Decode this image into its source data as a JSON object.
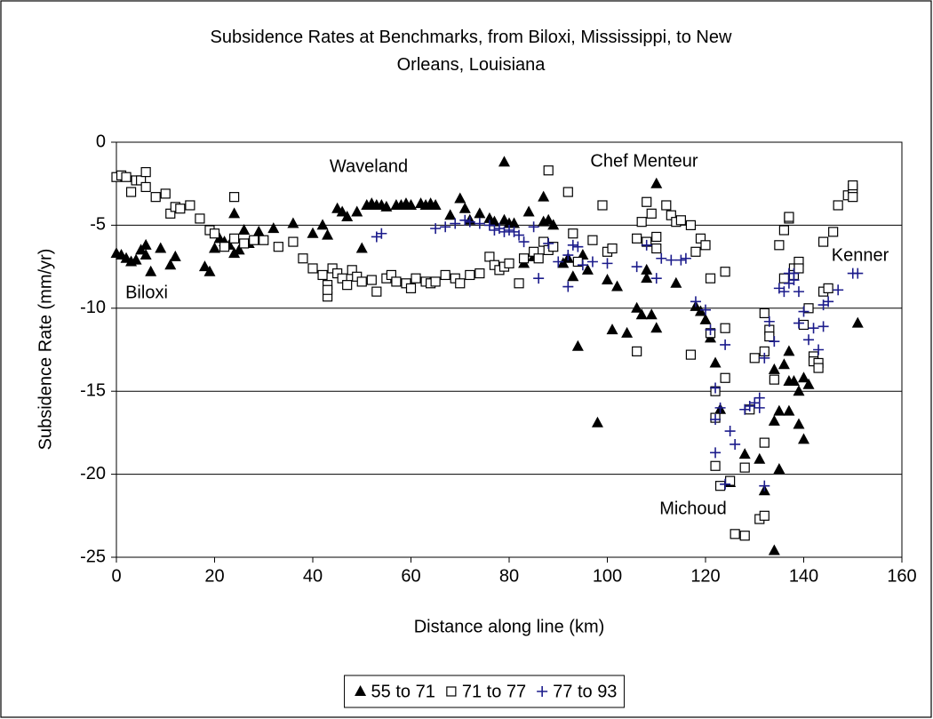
{
  "chart_data": {
    "type": "scatter",
    "title": "Subsidence Rates at Benchmarks, from Biloxi, Mississippi, to New Orleans, Louisiana",
    "xlabel": "Distance along line (km)",
    "ylabel": "Subsidence Rate (mm/yr)",
    "xlim": [
      0,
      160
    ],
    "xticks": [
      0,
      20,
      40,
      60,
      80,
      100,
      120,
      140,
      160
    ],
    "ylim": [
      -25,
      0
    ],
    "yticks": [
      -25,
      -20,
      -15,
      -10,
      -5,
      0
    ],
    "grid": true,
    "legend": "bottom",
    "annotations": [
      "Waveland",
      "Chef Menteur",
      "Biloxi",
      "Kenner",
      "Michoud"
    ],
    "series": [
      {
        "name": "55 to 71",
        "color": "#000000",
        "marker": "triangle",
        "x": [
          0,
          1,
          2,
          3,
          4,
          5,
          6,
          6,
          7,
          9,
          11,
          12,
          18,
          19,
          20,
          21,
          22,
          23,
          24,
          24,
          25,
          26,
          27,
          29,
          32,
          36,
          40,
          42,
          43,
          45,
          46,
          47,
          49,
          50,
          51,
          52,
          53,
          54,
          55,
          57,
          58,
          59,
          60,
          62,
          63,
          64,
          65,
          68,
          70,
          71,
          72,
          74,
          76,
          77,
          79,
          79,
          80,
          81,
          83,
          84,
          85,
          87,
          87,
          88,
          89,
          91,
          92,
          93,
          94,
          95,
          96,
          98,
          100,
          101,
          102,
          104,
          106,
          107,
          108,
          108,
          109,
          110,
          110,
          114,
          118,
          119,
          120,
          121,
          122,
          123,
          125,
          128,
          131,
          132,
          134,
          134,
          135,
          135,
          136,
          137,
          137,
          137,
          138,
          139,
          139,
          140,
          140,
          141,
          134,
          151
        ],
        "values": [
          -6.7,
          -6.8,
          -7,
          -7.2,
          -7.1,
          -6.5,
          -6.2,
          -6.8,
          -7.8,
          -6.4,
          -7.4,
          -6.9,
          -7.5,
          -7.8,
          -6.4,
          -5.8,
          -6,
          -6.2,
          -4.3,
          -6.7,
          -6.5,
          -5.3,
          -6.1,
          -5.4,
          -5.2,
          -4.9,
          -5.5,
          -5,
          -5.6,
          -4,
          -4.2,
          -4.5,
          -4.2,
          -6.4,
          -3.8,
          -3.7,
          -3.8,
          -3.8,
          -3.9,
          -3.8,
          -3.8,
          -3.7,
          -3.8,
          -3.7,
          -3.8,
          -3.7,
          -3.8,
          -4.4,
          -3.4,
          -4,
          -4.7,
          -4.3,
          -4.6,
          -4.8,
          -1.2,
          -4.7,
          -4.9,
          -4.9,
          -7.3,
          -4.2,
          -6.9,
          -3.3,
          -4.8,
          -4.7,
          -5,
          -7.3,
          -7,
          -8.1,
          -12.3,
          -6.8,
          -7.7,
          -16.9,
          -8.3,
          -11.3,
          -8.7,
          -11.5,
          -10,
          -10.4,
          -7.7,
          -8.2,
          -10.4,
          -2.5,
          -11.2,
          -8.5,
          -9.9,
          -10.2,
          -10.7,
          -11.8,
          -13.3,
          -16.1,
          -20.5,
          -18.8,
          -19.1,
          -21,
          -16.8,
          -13.7,
          -16.2,
          -19.7,
          -13.4,
          -16.2,
          -12.6,
          -14.4,
          -14.4,
          -17,
          -15,
          -14.2,
          -17.9,
          -14.6,
          -24.6,
          -10.9
        ]
      },
      {
        "name": "71 to 77",
        "color": "#000000",
        "marker": "square",
        "x": [
          0,
          1,
          2,
          3,
          4,
          5,
          6,
          6,
          8,
          10,
          11,
          12,
          13,
          15,
          17,
          19,
          20,
          22,
          24,
          24,
          26,
          28,
          30,
          33,
          36,
          38,
          40,
          42,
          43,
          43,
          43,
          44,
          45,
          46,
          47,
          48,
          49,
          50,
          52,
          53,
          55,
          56,
          57,
          59,
          60,
          61,
          63,
          64,
          65,
          67,
          69,
          70,
          72,
          74,
          76,
          77,
          78,
          79,
          80,
          82,
          83,
          85,
          86,
          87,
          88,
          88,
          89,
          92,
          93,
          94,
          97,
          99,
          100,
          101,
          106,
          106,
          107,
          108,
          108,
          109,
          110,
          110,
          112,
          113,
          114,
          115,
          117,
          117,
          118,
          119,
          120,
          121,
          121,
          122,
          122,
          122,
          123,
          124,
          124,
          124,
          125,
          126,
          128,
          128,
          129,
          130,
          131,
          132,
          132,
          132,
          132,
          133,
          133,
          134,
          135,
          136,
          136,
          137,
          137,
          138,
          138,
          139,
          139,
          140,
          141,
          142,
          142,
          143,
          143,
          144,
          144,
          145,
          146,
          147,
          149,
          150,
          150,
          150
        ],
        "values": [
          -2.1,
          -2,
          -2.1,
          -3,
          -2.3,
          -2.3,
          -1.8,
          -2.7,
          -3.3,
          -3.1,
          -4.3,
          -3.9,
          -4,
          -3.8,
          -4.6,
          -5.3,
          -5.5,
          -6.3,
          -3.3,
          -5.8,
          -6.1,
          -5.9,
          -5.9,
          -6.3,
          -6,
          -7,
          -7.6,
          -8,
          -8.6,
          -9.3,
          -8.9,
          -7.6,
          -7.9,
          -8.2,
          -8.6,
          -7.7,
          -8.1,
          -8.4,
          -8.3,
          -9,
          -8.2,
          -8,
          -8.4,
          -8.5,
          -8.8,
          -8.2,
          -8.4,
          -8.5,
          -8.4,
          -8,
          -8.2,
          -8.5,
          -8,
          -7.9,
          -6.9,
          -7.4,
          -7.7,
          -7.5,
          -7.3,
          -8.5,
          -7,
          -6.6,
          -7,
          -6,
          -1.7,
          -6.5,
          -6.3,
          -3,
          -5.5,
          -7.2,
          -5.9,
          -3.8,
          -6.6,
          -6.4,
          -12.6,
          -5.8,
          -4.8,
          -3.6,
          -6,
          -4.3,
          -5.7,
          -6.4,
          -3.8,
          -4.4,
          -4.8,
          -4.7,
          -5,
          -12.8,
          -6.6,
          -5.8,
          -6.2,
          -8.2,
          -11.5,
          -15,
          -16.6,
          -19.5,
          -20.7,
          -7.8,
          -11.2,
          -14.2,
          -20.4,
          -23.6,
          -23.7,
          -19.6,
          -16.1,
          -13,
          -22.7,
          -22.5,
          -18.1,
          -12.6,
          -10.3,
          -11.3,
          -11.7,
          -14.3,
          -6.2,
          -5.3,
          -8.2,
          -4.6,
          -4.5,
          -7.6,
          -8,
          -7.2,
          -7.6,
          -11,
          -10,
          -12.9,
          -13.2,
          -13.3,
          -13.6,
          -9,
          -6,
          -8.8,
          -5.4,
          -3.8,
          -3.2,
          -2.8,
          -2.6,
          -3.3
        ]
      },
      {
        "name": "77 to 93",
        "color": "#1c1c8c",
        "marker": "plus",
        "x": [
          53,
          54,
          65,
          67,
          69,
          71,
          72,
          74,
          76,
          77,
          78,
          79,
          80,
          81,
          82,
          83,
          85,
          86,
          88,
          90,
          92,
          92,
          93,
          94,
          95,
          97,
          100,
          106,
          108,
          110,
          111,
          113,
          115,
          116,
          118,
          120,
          121,
          122,
          122,
          122,
          123,
          124,
          124,
          125,
          126,
          128,
          129,
          130,
          131,
          131,
          132,
          132,
          133,
          134,
          135,
          136,
          137,
          137,
          138,
          138,
          139,
          139,
          140,
          141,
          142,
          143,
          144,
          144,
          145,
          147,
          150,
          151
        ],
        "values": [
          -5.7,
          -5.5,
          -5.2,
          -5.1,
          -4.9,
          -4.7,
          -4.8,
          -4.9,
          -5,
          -5.3,
          -5.2,
          -5.4,
          -5.3,
          -5.4,
          -5.6,
          -6,
          -5.1,
          -8.2,
          -6.1,
          -7.2,
          -6.8,
          -8.7,
          -6.2,
          -6.3,
          -7.4,
          -7.2,
          -7.3,
          -7.5,
          -6.2,
          -8.2,
          -7,
          -7.1,
          -7.1,
          -7,
          -9.6,
          -10.1,
          -11.3,
          -14.8,
          -16.7,
          -18.7,
          -16,
          -20.6,
          -12.2,
          -17.4,
          -18.2,
          -16.1,
          -15.9,
          -15.7,
          -15.4,
          -16,
          -20.7,
          -13,
          -10.8,
          -12,
          -8.8,
          -9,
          -8.5,
          -7.9,
          -7.9,
          -8.3,
          -9,
          -10.9,
          -10.2,
          -11.9,
          -11.2,
          -12.5,
          -11.1,
          -9.8,
          -9.6,
          -8.9,
          -7.9,
          -7.9
        ]
      }
    ]
  }
}
